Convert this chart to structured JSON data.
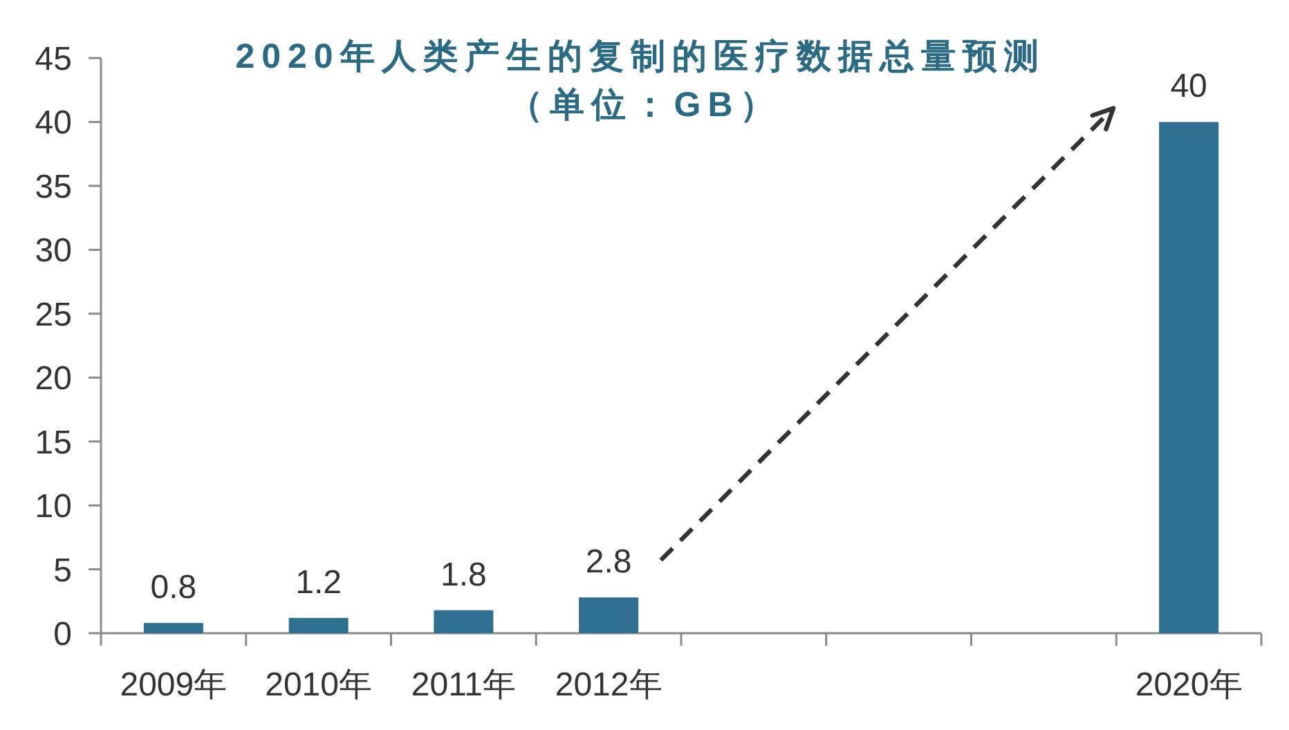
{
  "chart_data": {
    "type": "bar",
    "title": "2020年人类产生的复制的医疗数据总量预测",
    "subtitle": "（单位：GB）",
    "categories": [
      "2009年",
      "2010年",
      "2011年",
      "2012年",
      null,
      null,
      null,
      "2020年"
    ],
    "values": [
      0.8,
      1.2,
      1.8,
      2.8,
      null,
      null,
      null,
      40
    ],
    "color": "#2f6f8f",
    "ylim": [
      0,
      45
    ],
    "yticks": [
      0,
      5,
      10,
      15,
      20,
      25,
      30,
      35,
      40,
      45
    ],
    "data_labels": true
  }
}
